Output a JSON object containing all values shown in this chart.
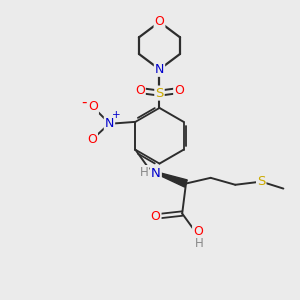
{
  "bg_color": "#ebebeb",
  "bond_color": "#2d2d2d",
  "colors": {
    "O": "#ff0000",
    "N": "#0000cc",
    "S": "#ccaa00",
    "C": "#2d2d2d",
    "H": "#888888"
  }
}
